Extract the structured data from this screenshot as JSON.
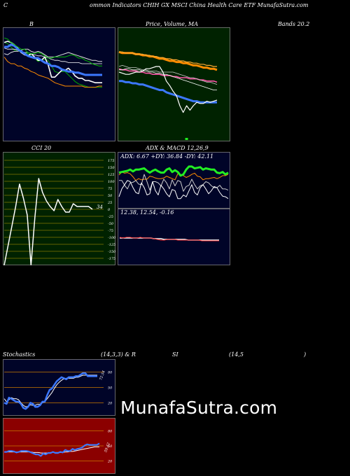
{
  "header": {
    "title": "ommon  Indicators CHIH GX  MSCI China  Health Care   ETF MunafaSutra.com",
    "c_label": "C"
  },
  "labels": {
    "bands": "B",
    "price_ma": "Price,  Volume,  MA",
    "bands_value": "Bands 20.2",
    "cci": "CCI 20",
    "adx_macd": "ADX  & MACD 12,26,9",
    "adx_values": "ADX: 6.67  +DY: 36.84  -DY: 42.11",
    "macd_values": "12.38,  12.54,  -0.16",
    "stoch": "Stochastics",
    "stoch_params": "(14,3,3) & R",
    "si": "SI",
    "rsi_params": "(14,5",
    "paren": ")",
    "cci_value": "34",
    "stoch_value": "72.54",
    "rsi_value": "59.42"
  },
  "watermark": "MunafaSutra.com",
  "colors": {
    "bands_bg": "#000428",
    "price_bg": "#002200",
    "cci_bg": "#002200",
    "adx_bg": "#000428",
    "stoch_bg": "#000428",
    "rsi_bg": "#8b0000",
    "grid_orange": "#c87800",
    "blue": "#3c78ff",
    "orange": "#ff8c00",
    "green": "#22ee22"
  },
  "chart_data": [
    {
      "type": "line",
      "panel": "bollinger-bands",
      "x": [
        1,
        2,
        3,
        4,
        5,
        6,
        7,
        8,
        9,
        10,
        11,
        12,
        13,
        14,
        15,
        16,
        17,
        18,
        19,
        20,
        21,
        22,
        23,
        24,
        25,
        26,
        27,
        28,
        29,
        30
      ],
      "series": [
        {
          "values": [
            79,
            78,
            75,
            72,
            72,
            70,
            70,
            69,
            67,
            65,
            62,
            63,
            64,
            63,
            58,
            53,
            52,
            53,
            53,
            50,
            47,
            44,
            42,
            41,
            40,
            39,
            39,
            39,
            39,
            39
          ]
        },
        {
          "values": [
            74,
            73,
            73,
            73,
            72,
            71,
            70,
            70,
            69,
            68,
            67,
            67,
            66,
            65,
            64,
            63,
            63,
            62,
            62,
            61,
            61,
            61,
            61,
            60,
            60,
            60,
            60,
            60,
            60,
            60
          ]
        },
        {
          "values": [
            69,
            68,
            70,
            71,
            71,
            72,
            73,
            73,
            71,
            70,
            71,
            70,
            68,
            66,
            66,
            66,
            67,
            68,
            69,
            70,
            69,
            68,
            67,
            66,
            65,
            64,
            63,
            63,
            62,
            62
          ]
        },
        {
          "values": [
            79,
            80,
            79,
            77,
            74,
            70,
            68,
            67,
            69,
            66,
            63,
            63,
            66,
            59,
            48,
            48,
            51,
            54,
            54,
            56,
            53,
            49,
            47,
            47,
            45,
            45,
            44,
            43,
            43,
            43
          ]
        },
        {
          "values": [
            75,
            75,
            77,
            76,
            73,
            71,
            69,
            67,
            66,
            65,
            65,
            63,
            61,
            60,
            58,
            58,
            57,
            55,
            54,
            53,
            53,
            52,
            52,
            51,
            50,
            50,
            50,
            50,
            50,
            50
          ]
        },
        {
          "values": [
            83,
            82,
            79,
            77,
            75,
            73,
            73,
            70,
            69,
            69,
            70,
            69,
            67,
            65,
            65,
            66,
            66,
            66,
            66,
            67,
            68,
            67,
            65,
            65,
            63,
            62,
            60,
            59,
            58,
            58
          ]
        },
        {
          "values": [
            66,
            62,
            60,
            60,
            58,
            58,
            56,
            55,
            53,
            52,
            50,
            49,
            48,
            47,
            45,
            43,
            42,
            41,
            40,
            40,
            40,
            40,
            40,
            40,
            39,
            39,
            39,
            39,
            40,
            40
          ]
        }
      ]
    },
    {
      "type": "line",
      "panel": "price-volume-ma",
      "x": [
        1,
        2,
        3,
        4,
        5,
        6,
        7,
        8,
        9,
        10,
        11,
        12,
        13,
        14,
        15,
        16,
        17,
        18,
        19,
        20,
        21,
        22,
        23,
        24,
        25,
        26,
        27,
        28,
        29,
        30
      ],
      "series": [
        {
          "values": [
            78,
            77,
            77,
            77,
            77,
            76,
            76,
            75,
            75,
            74,
            74,
            73,
            72,
            72,
            71,
            70,
            70,
            69,
            69,
            68,
            68,
            67,
            66,
            66,
            65,
            64,
            64,
            63,
            63,
            62
          ]
        },
        {
          "values": [
            78,
            78,
            77,
            77,
            77,
            76,
            76,
            76,
            75,
            75,
            74,
            74,
            73,
            73,
            72,
            72,
            71,
            71,
            70,
            70,
            69,
            69,
            68,
            68,
            67,
            67,
            66,
            66,
            65,
            65
          ]
        },
        {
          "values": [
            63,
            62,
            62,
            61,
            61,
            61,
            60,
            60,
            59,
            59,
            58,
            58,
            58,
            57,
            57,
            57,
            56,
            56,
            55,
            55,
            55,
            54,
            54,
            54,
            53,
            53,
            52,
            52,
            52,
            51
          ]
        },
        {
          "values": [
            52,
            52,
            51,
            51,
            50,
            50,
            49,
            49,
            48,
            47,
            46,
            45,
            44,
            44,
            42,
            41,
            40,
            39,
            38,
            37,
            36,
            35,
            34,
            34,
            33,
            33,
            33,
            33,
            33,
            33
          ]
        },
        {
          "values": [
            65,
            66,
            65,
            64,
            64,
            64,
            63,
            62,
            62,
            61,
            61,
            61,
            60,
            60,
            60,
            60,
            60,
            59,
            58,
            57,
            56,
            55,
            55,
            54,
            53,
            52,
            51,
            51,
            50,
            49
          ]
        },
        {
          "values": [
            62,
            62,
            63,
            63,
            62,
            62,
            62,
            61,
            61,
            60,
            60,
            59,
            59,
            58,
            58,
            57,
            56,
            55,
            54,
            53,
            52,
            51,
            50,
            49,
            48,
            47,
            46,
            45,
            44,
            44
          ]
        },
        {
          "values": [
            60,
            59,
            58,
            58,
            59,
            60,
            60,
            61,
            63,
            63,
            64,
            65,
            65,
            60,
            52,
            48,
            43,
            39,
            30,
            24,
            30,
            26,
            30,
            33,
            32,
            32,
            34,
            33,
            34,
            35
          ]
        }
      ],
      "volume": [
        0,
        0,
        0,
        0,
        0,
        0,
        0,
        0,
        0,
        0,
        0,
        0,
        0,
        0,
        0,
        0,
        0,
        0,
        0,
        0,
        1,
        0,
        0,
        0,
        0,
        0,
        0,
        0,
        0,
        0
      ]
    },
    {
      "type": "line",
      "panel": "cci",
      "y_ticks": [
        175,
        150,
        125,
        100,
        75,
        50,
        25,
        0,
        -25,
        -50,
        -75,
        -100,
        -125,
        -150,
        -175
      ],
      "x": [
        1,
        2,
        3,
        4,
        5,
        6,
        7,
        8,
        9,
        10,
        11,
        12,
        13,
        14,
        15,
        16,
        17,
        18,
        19,
        20,
        21,
        22,
        23,
        24
      ],
      "series": [
        {
          "values": [
            -200,
            -130,
            -60,
            10,
            90,
            40,
            -20,
            -200,
            -30,
            110,
            60,
            30,
            10,
            -5,
            35,
            10,
            -10,
            -10,
            20,
            10,
            10,
            10,
            10,
            0
          ]
        }
      ]
    },
    {
      "type": "line",
      "panel": "adx",
      "x": [
        1,
        2,
        3,
        4,
        5,
        6,
        7,
        8,
        9,
        10,
        11,
        12,
        13,
        14,
        15,
        16,
        17,
        18,
        19,
        20,
        21,
        22,
        23,
        24,
        25,
        26,
        27,
        28,
        29,
        30,
        31,
        32,
        33,
        34,
        35,
        36,
        37,
        38,
        39,
        40
      ],
      "series": [
        {
          "values": [
            51,
            56,
            54,
            55,
            53,
            48,
            42,
            45,
            43,
            44,
            44,
            49,
            48,
            46,
            45,
            45,
            46,
            49,
            47,
            45,
            43,
            53,
            52,
            50,
            47,
            49,
            52,
            54,
            49,
            48,
            43,
            45,
            45,
            46,
            47,
            45,
            47,
            50,
            50,
            52
          ]
        },
        {
          "values": [
            42,
            42,
            34,
            28,
            38,
            39,
            42,
            36,
            35,
            52,
            40,
            26,
            40,
            40,
            38,
            33,
            44,
            38,
            28,
            43,
            33,
            42,
            40,
            24,
            32,
            34,
            44,
            35,
            28,
            33,
            35,
            40,
            38,
            33,
            30,
            30,
            34,
            28,
            28,
            26
          ]
        },
        {
          "values": [
            55,
            56,
            57,
            58,
            60,
            57,
            60,
            60,
            61,
            62,
            58,
            55,
            58,
            60,
            57,
            55,
            55,
            60,
            62,
            56,
            59,
            56,
            50,
            52,
            60,
            65,
            65,
            62,
            63,
            64,
            60,
            62,
            61,
            60,
            60,
            55,
            54,
            56,
            52,
            55
          ]
        },
        {
          "values": [
            15,
            28,
            35,
            42,
            40,
            30,
            22,
            20,
            38,
            30,
            18,
            20,
            40,
            25,
            18,
            34,
            28,
            20,
            15,
            27,
            25,
            12,
            12,
            18,
            15,
            25,
            35,
            22,
            18,
            30,
            35,
            28,
            20,
            25,
            32,
            30,
            22,
            16,
            15,
            12
          ]
        }
      ]
    },
    {
      "type": "line",
      "panel": "macd",
      "x": [
        1,
        2,
        3,
        4,
        5,
        6,
        7,
        8,
        9,
        10,
        11,
        12,
        13,
        14,
        15,
        16,
        17,
        18,
        19,
        20,
        21,
        22,
        23,
        24,
        25,
        26,
        27,
        28,
        29,
        30
      ],
      "series": [
        {
          "values": [
            12.9,
            12.8,
            12.9,
            12.9,
            12.8,
            12.8,
            12.9,
            12.8,
            12.8,
            12.8,
            12.7,
            12.6,
            12.5,
            12.5,
            12.6,
            12.6,
            12.6,
            12.5,
            12.5,
            12.5,
            12.5,
            12.5,
            12.5,
            12.5,
            12.4,
            12.4,
            12.4,
            12.4,
            12.4,
            12.4
          ]
        },
        {
          "values": [
            12.8,
            12.8,
            12.8,
            12.8,
            12.8,
            12.8,
            12.8,
            12.8,
            12.8,
            12.8,
            12.7,
            12.7,
            12.7,
            12.6,
            12.6,
            12.6,
            12.6,
            12.6,
            12.6,
            12.6,
            12.5,
            12.5,
            12.5,
            12.5,
            12.5,
            12.5,
            12.5,
            12.5,
            12.5,
            12.5
          ]
        }
      ]
    },
    {
      "type": "line",
      "panel": "stochastics",
      "y_ticks": [
        80,
        50,
        20
      ],
      "x": [
        1,
        2,
        3,
        4,
        5,
        6,
        7,
        8,
        9,
        10,
        11,
        12,
        13,
        14,
        15,
        16,
        17,
        18,
        19,
        20,
        21,
        22,
        23,
        24,
        25,
        26,
        27,
        28,
        29,
        30,
        31,
        32,
        33,
        34,
        35,
        36,
        37,
        38,
        39,
        40
      ],
      "series": [
        {
          "values": [
            20,
            18,
            30,
            28,
            25,
            22,
            22,
            18,
            10,
            8,
            12,
            20,
            18,
            12,
            12,
            15,
            22,
            22,
            35,
            45,
            48,
            55,
            62,
            66,
            70,
            68,
            66,
            70,
            70,
            70,
            72,
            72,
            75,
            78,
            78,
            72,
            72,
            72,
            72,
            72
          ]
        },
        {
          "values": [
            28,
            22,
            26,
            30,
            28,
            28,
            26,
            20,
            15,
            12,
            13,
            16,
            15,
            15,
            17,
            17,
            20,
            22,
            28,
            34,
            40,
            48,
            55,
            60,
            64,
            67,
            68,
            68,
            68,
            68,
            70,
            70,
            72,
            74,
            74,
            74,
            74,
            74,
            74,
            74
          ]
        }
      ]
    },
    {
      "type": "line",
      "panel": "rsi",
      "y_ticks": [
        80,
        50,
        20
      ],
      "x": [
        1,
        2,
        3,
        4,
        5,
        6,
        7,
        8,
        9,
        10,
        11,
        12,
        13,
        14,
        15,
        16,
        17,
        18,
        19,
        20,
        21,
        22,
        23,
        24,
        25,
        26,
        27,
        28,
        29,
        30,
        31,
        32,
        33,
        34,
        35,
        36,
        37,
        38,
        39,
        40
      ],
      "series": [
        {
          "values": [
            38,
            38,
            40,
            40,
            39,
            37,
            38,
            40,
            40,
            40,
            39,
            37,
            35,
            33,
            33,
            30,
            35,
            33,
            36,
            36,
            38,
            36,
            36,
            38,
            37,
            42,
            40,
            40,
            44,
            42,
            44,
            45,
            47,
            51,
            53,
            52,
            52,
            52,
            52,
            55
          ]
        },
        {
          "values": [
            38,
            38,
            38,
            38,
            38,
            38,
            38,
            38,
            38,
            38,
            38,
            38,
            37,
            37,
            37,
            36,
            36,
            36,
            36,
            37,
            37,
            37,
            37,
            37,
            37,
            38,
            38,
            39,
            39,
            40,
            41,
            42,
            43,
            44,
            45,
            46,
            47,
            48,
            48,
            48
          ]
        }
      ]
    }
  ]
}
